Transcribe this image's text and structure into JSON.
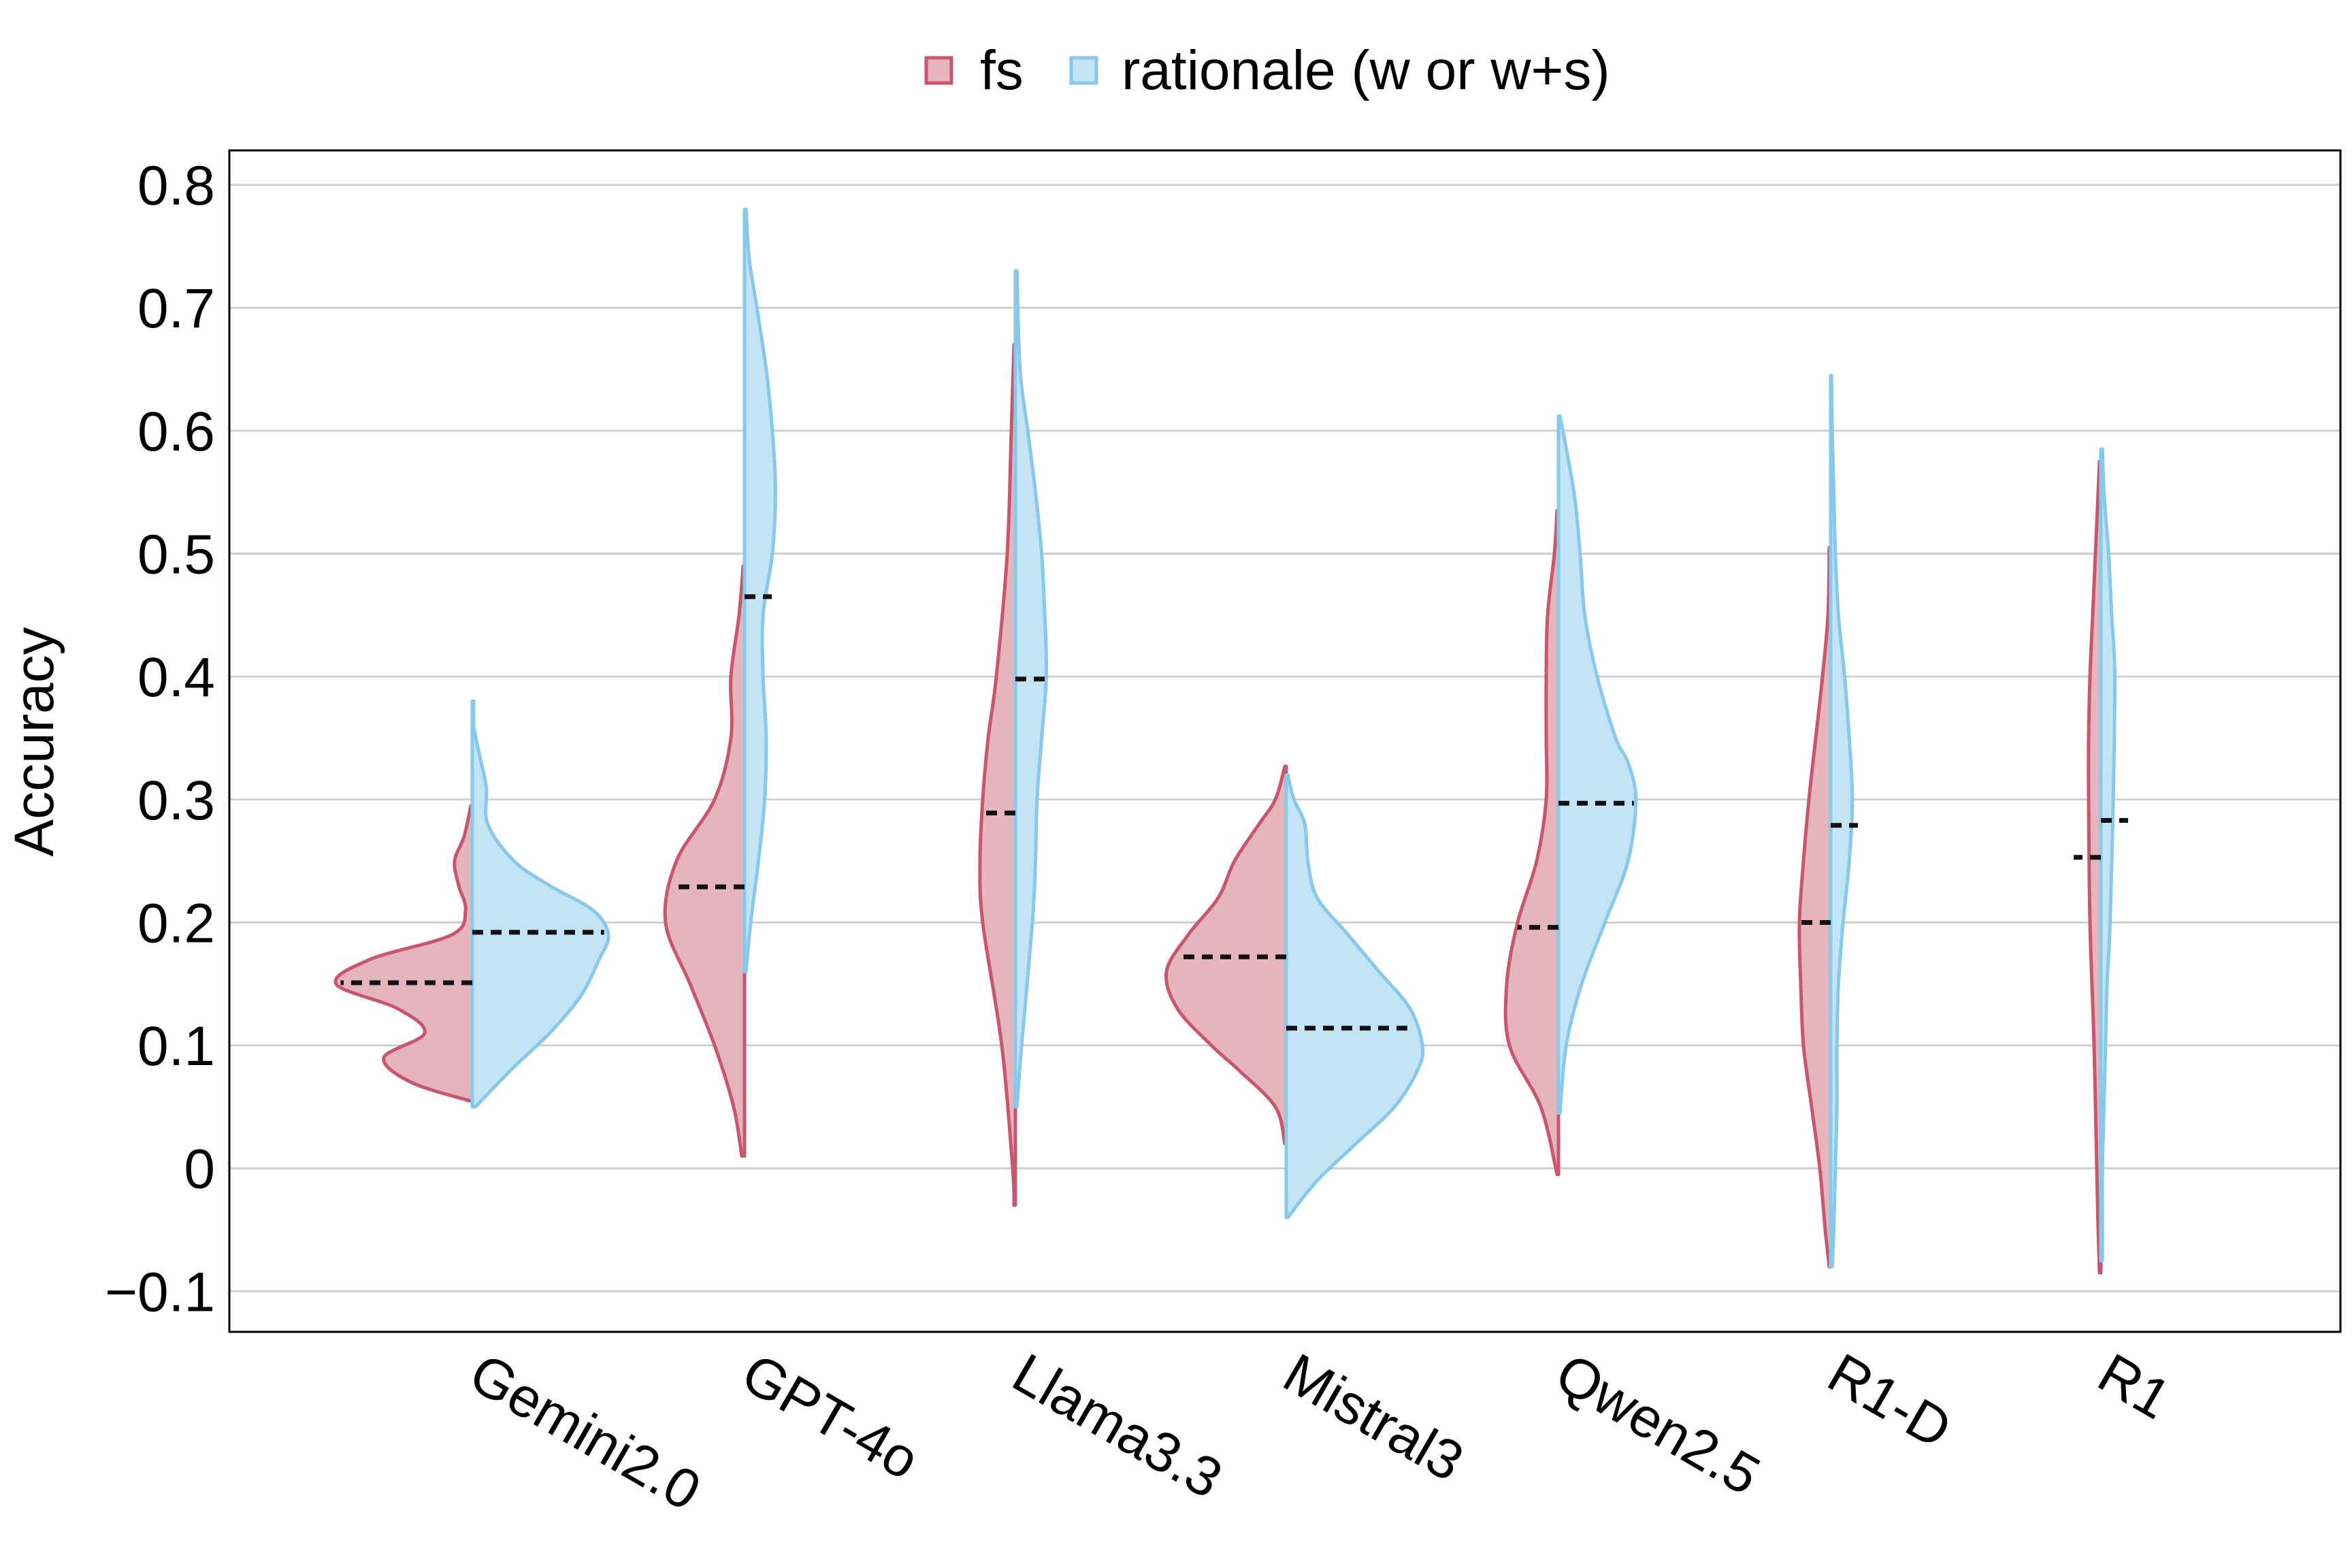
{
  "chart_data": {
    "type": "violin",
    "title": "",
    "xlabel": "",
    "ylabel": "Accuracy",
    "ylim": [
      -0.133,
      0.828
    ],
    "yticks": [
      -0.1,
      0,
      0.1,
      0.2,
      0.3,
      0.4,
      0.5,
      0.6,
      0.7,
      0.8
    ],
    "ytick_labels": [
      "−0.1",
      "0",
      "0.1",
      "0.2",
      "0.3",
      "0.4",
      "0.5",
      "0.6",
      "0.7",
      "0.8"
    ],
    "grid": "horizontal",
    "legend_position": "top-center",
    "categories": [
      "Gemini2.0",
      "GPT-4o",
      "Llama3.3",
      "Mistral3",
      "Qwen2.5",
      "R1-D",
      "R1"
    ],
    "series": [
      {
        "name": "fs",
        "side": "left",
        "fill": "#e5b4bd",
        "stroke": "#c9566d",
        "medians": [
          0.151,
          0.229,
          0.289,
          0.172,
          0.196,
          0.2,
          0.253
        ],
        "violins": [
          {
            "y": [
              0.055,
              0.07,
              0.09,
              0.11,
              0.13,
              0.15,
              0.17,
              0.19,
              0.21,
              0.23,
              0.25,
              0.27,
              0.295
            ],
            "density": [
              0.02,
              0.45,
              0.65,
              0.35,
              0.55,
              1.0,
              0.75,
              0.15,
              0.05,
              0.1,
              0.13,
              0.06,
              0.01
            ]
          },
          {
            "y": [
              0.01,
              0.05,
              0.1,
              0.15,
              0.2,
              0.25,
              0.3,
              0.35,
              0.4,
              0.45,
              0.49
            ],
            "density": [
              0.02,
              0.08,
              0.22,
              0.4,
              0.58,
              0.5,
              0.22,
              0.1,
              0.1,
              0.04,
              0.01
            ]
          },
          {
            "y": [
              -0.03,
              0.0,
              0.1,
              0.2,
              0.25,
              0.3,
              0.35,
              0.4,
              0.5,
              0.6,
              0.67
            ],
            "density": [
              0.01,
              0.02,
              0.1,
              0.24,
              0.26,
              0.24,
              0.2,
              0.14,
              0.06,
              0.03,
              0.01
            ]
          },
          {
            "y": [
              0.02,
              0.05,
              0.08,
              0.1,
              0.13,
              0.16,
              0.19,
              0.22,
              0.25,
              0.28,
              0.3,
              0.327
            ],
            "density": [
              0.01,
              0.08,
              0.35,
              0.55,
              0.8,
              0.88,
              0.72,
              0.5,
              0.38,
              0.2,
              0.08,
              0.01
            ]
          },
          {
            "y": [
              -0.005,
              0.05,
              0.1,
              0.15,
              0.2,
              0.25,
              0.3,
              0.35,
              0.4,
              0.45,
              0.5,
              0.535
            ],
            "density": [
              0.01,
              0.13,
              0.36,
              0.38,
              0.3,
              0.16,
              0.09,
              0.09,
              0.09,
              0.08,
              0.03,
              0.01
            ]
          },
          {
            "y": [
              -0.08,
              -0.05,
              0.0,
              0.05,
              0.1,
              0.15,
              0.2,
              0.25,
              0.3,
              0.35,
              0.4,
              0.45,
              0.505
            ],
            "density": [
              0.01,
              0.04,
              0.08,
              0.14,
              0.2,
              0.22,
              0.23,
              0.2,
              0.16,
              0.11,
              0.06,
              0.02,
              0.01
            ]
          },
          {
            "y": [
              -0.085,
              -0.05,
              0.0,
              0.1,
              0.2,
              0.3,
              0.35,
              0.4,
              0.45,
              0.5,
              0.575
            ],
            "density": [
              0.01,
              0.02,
              0.03,
              0.05,
              0.08,
              0.09,
              0.09,
              0.08,
              0.06,
              0.04,
              0.01
            ]
          }
        ]
      },
      {
        "name": "rationale (w or w+s)",
        "side": "right",
        "fill": "#c3e4f5",
        "stroke": "#86c9ec",
        "medians": [
          0.192,
          0.465,
          0.398,
          0.114,
          0.297,
          0.279,
          0.283
        ],
        "violins": [
          {
            "y": [
              0.05,
              0.08,
              0.11,
              0.14,
              0.17,
              0.19,
              0.21,
              0.23,
              0.25,
              0.28,
              0.31,
              0.34,
              0.36,
              0.38
            ],
            "density": [
              0.02,
              0.25,
              0.5,
              0.7,
              0.82,
              0.88,
              0.78,
              0.5,
              0.27,
              0.1,
              0.09,
              0.04,
              0.01,
              0.01
            ]
          },
          {
            "y": [
              0.16,
              0.2,
              0.25,
              0.3,
              0.35,
              0.4,
              0.45,
              0.5,
              0.55,
              0.6,
              0.65,
              0.7,
              0.74,
              0.78
            ],
            "density": [
              0.01,
              0.04,
              0.09,
              0.13,
              0.14,
              0.12,
              0.12,
              0.18,
              0.2,
              0.18,
              0.14,
              0.08,
              0.03,
              0.01
            ]
          },
          {
            "y": [
              0.05,
              0.1,
              0.2,
              0.25,
              0.3,
              0.35,
              0.4,
              0.45,
              0.5,
              0.55,
              0.6,
              0.65,
              0.73
            ],
            "density": [
              0.01,
              0.04,
              0.11,
              0.13,
              0.14,
              0.17,
              0.2,
              0.19,
              0.17,
              0.13,
              0.08,
              0.03,
              0.01
            ]
          },
          {
            "y": [
              -0.04,
              -0.01,
              0.02,
              0.05,
              0.08,
              0.1,
              0.13,
              0.16,
              0.19,
              0.22,
              0.25,
              0.28,
              0.3,
              0.32
            ],
            "density": [
              0.01,
              0.2,
              0.45,
              0.7,
              0.85,
              0.88,
              0.8,
              0.6,
              0.4,
              0.2,
              0.14,
              0.12,
              0.05,
              0.01
            ]
          },
          {
            "y": [
              0.045,
              0.1,
              0.15,
              0.2,
              0.25,
              0.3,
              0.33,
              0.35,
              0.4,
              0.45,
              0.5,
              0.55,
              0.612
            ],
            "density": [
              0.01,
              0.05,
              0.15,
              0.3,
              0.45,
              0.5,
              0.45,
              0.37,
              0.25,
              0.17,
              0.14,
              0.1,
              0.01
            ]
          },
          {
            "y": [
              -0.08,
              -0.05,
              0.0,
              0.05,
              0.1,
              0.15,
              0.2,
              0.25,
              0.3,
              0.35,
              0.4,
              0.45,
              0.5,
              0.55,
              0.6,
              0.645
            ],
            "density": [
              0.01,
              0.02,
              0.03,
              0.04,
              0.04,
              0.05,
              0.08,
              0.12,
              0.14,
              0.12,
              0.09,
              0.05,
              0.03,
              0.02,
              0.01,
              0.005
            ]
          },
          {
            "y": [
              -0.075,
              -0.05,
              0.0,
              0.05,
              0.1,
              0.15,
              0.2,
              0.3,
              0.4,
              0.45,
              0.5,
              0.55,
              0.585
            ],
            "density": [
              0.01,
              0.01,
              0.01,
              0.02,
              0.03,
              0.04,
              0.06,
              0.08,
              0.09,
              0.07,
              0.05,
              0.02,
              0.01
            ]
          }
        ]
      }
    ]
  }
}
